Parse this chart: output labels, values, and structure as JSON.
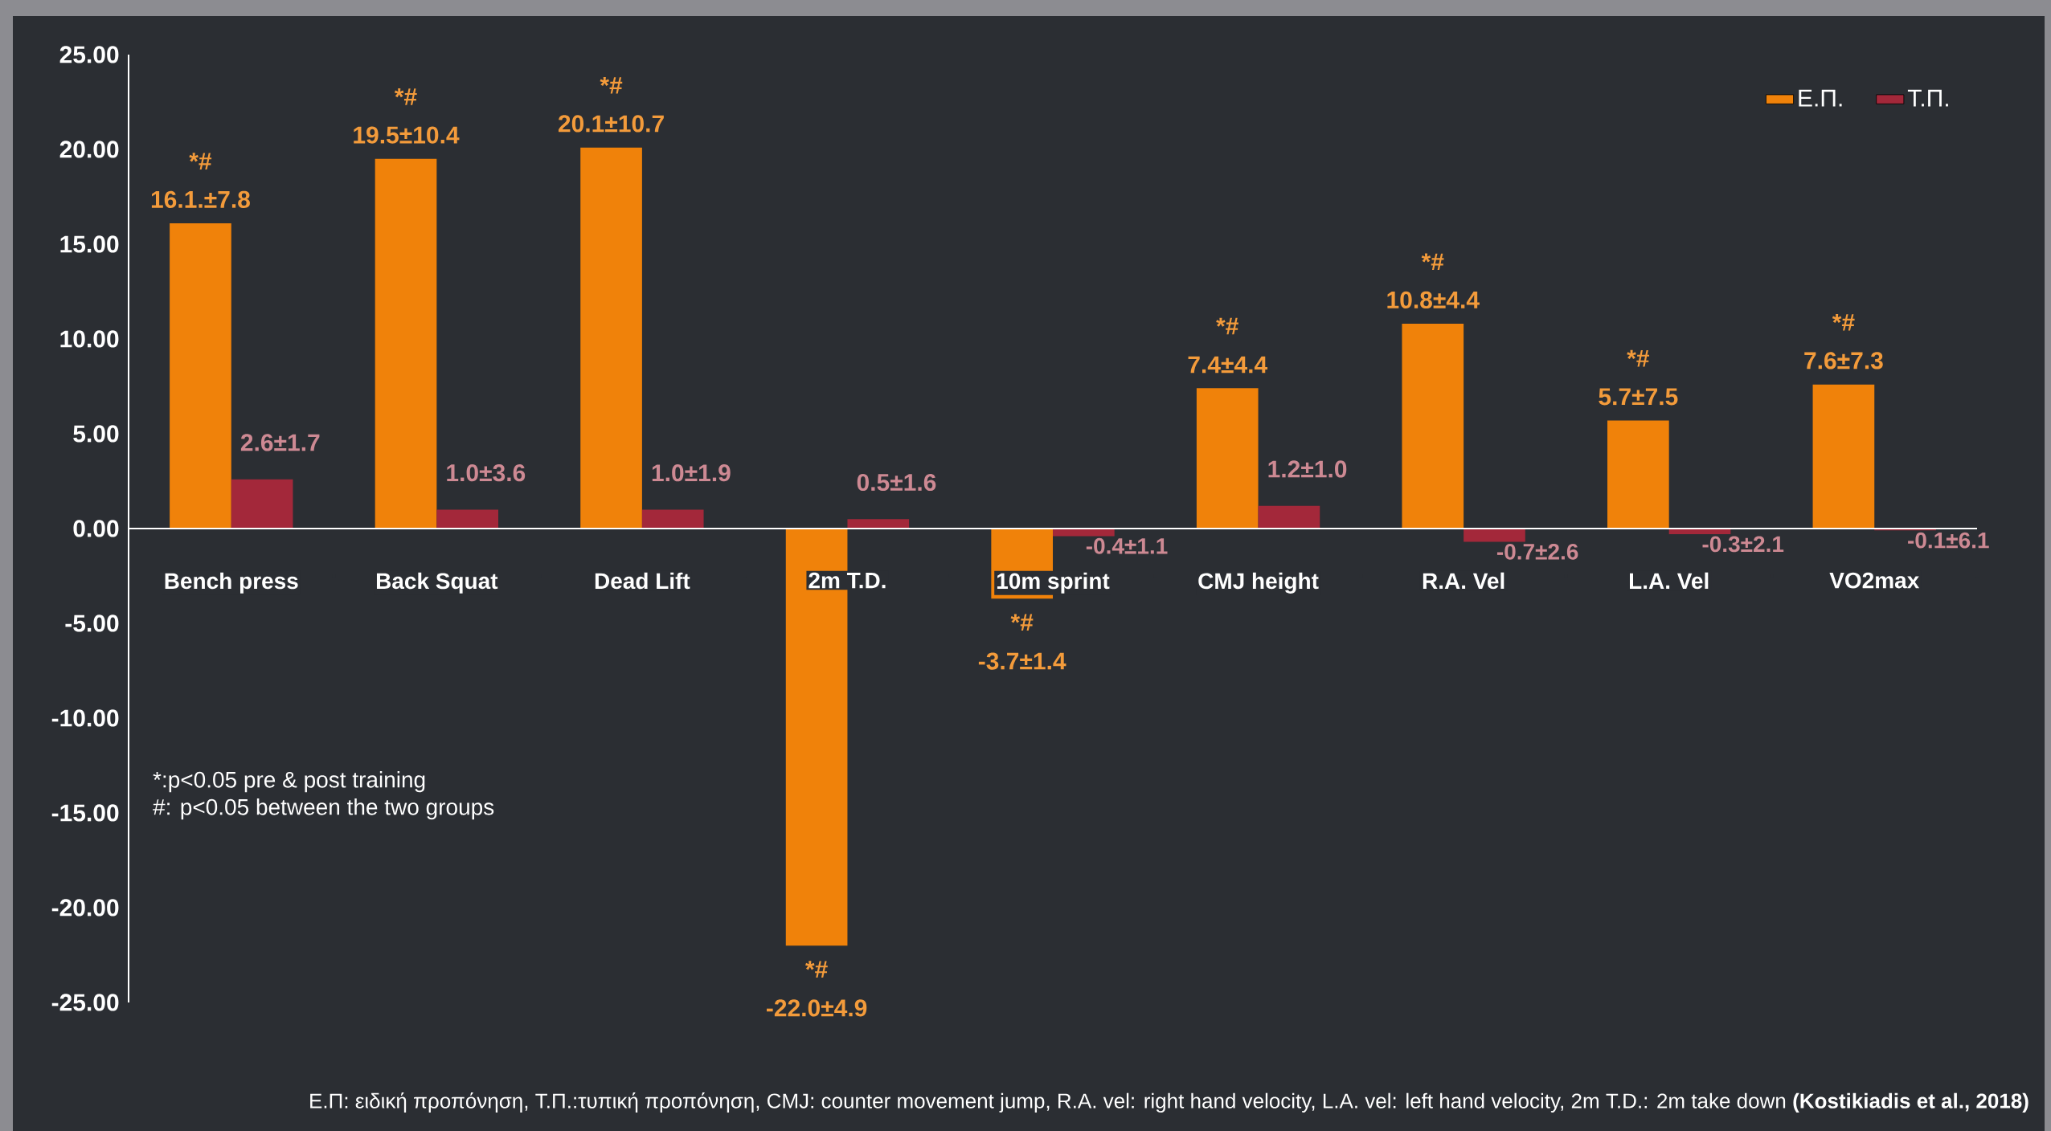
{
  "chart_data": {
    "type": "bar",
    "categories": [
      "Bench press",
      "Back Squat",
      "Dead Lift",
      "2m T.D.",
      "10m sprint",
      "CMJ height",
      "R.A. Vel",
      "L.A. Vel",
      "VO2max"
    ],
    "series": [
      {
        "name": "Ε.Π.",
        "color": "#f0820a",
        "values": [
          16.1,
          19.5,
          20.1,
          -22.0,
          -3.7,
          7.4,
          10.8,
          5.7,
          7.6
        ],
        "value_labels": [
          "16.1.±7.8",
          "19.5±10.4",
          "20.1±10.7",
          "-22.0±4.9",
          "-3.7±1.4",
          "7.4±4.4",
          "10.8±4.4",
          "5.7±7.5",
          "7.6±7.3"
        ]
      },
      {
        "name": "Τ.Π.",
        "color": "#a3283a",
        "values": [
          2.6,
          1.0,
          1.0,
          0.5,
          -0.4,
          1.2,
          -0.7,
          -0.3,
          -0.1
        ],
        "value_labels": [
          "2.6±1.7",
          "1.0±3.6",
          "1.0±1.9",
          "0.5±1.6",
          "-0.4±1.1",
          "1.2±1.0",
          "-0.7±2.6",
          "-0.3±2.1",
          "-0.1±6.1"
        ]
      }
    ],
    "ylim": [
      -25,
      25
    ],
    "yticks": [
      {
        "value": -25,
        "label": "-25.00"
      },
      {
        "value": -20,
        "label": "-20.00"
      },
      {
        "value": -15,
        "label": "-15.00"
      },
      {
        "value": -10,
        "label": "-10.00"
      },
      {
        "value": -5,
        "label": "-5.00"
      },
      {
        "value": 0,
        "label": "0.00"
      },
      {
        "value": 5,
        "label": "5.00"
      },
      {
        "value": 10,
        "label": "10.00"
      },
      {
        "value": 15,
        "label": "15.00"
      },
      {
        "value": 20,
        "label": "20.00"
      },
      {
        "value": 25,
        "label": "25.00"
      }
    ],
    "legend": "top right",
    "annotations": [
      {
        "text": "*#",
        "x": "Bench press",
        "y": 16.1
      },
      {
        "text": "*#",
        "x": "Back Squat",
        "y": 19.5
      },
      {
        "text": "*#",
        "x": "Dead Lift",
        "y": 20.1
      },
      {
        "text": "*#",
        "x": "2m T.D.",
        "y": -22.0
      },
      {
        "text": "*#",
        "x": "10m sprint",
        "y": -3.7
      },
      {
        "text": "*#",
        "x": "CMJ height",
        "y": 7.4
      },
      {
        "text": "*#",
        "x": "R.A. Vel",
        "y": 10.8
      },
      {
        "text": "*#",
        "x": "L.A. Vel",
        "y": 5.7
      },
      {
        "text": "*#",
        "x": "VO2max",
        "y": 7.6
      },
      "*:p<0.05 pre & post training",
      "#: p<0.05 between the two groups",
      "Ε.Π: ειδική προπόνηση, Τ.Π.:τυπική προπόνηση, CMJ: counter movement jump, R.A. vel: right hand velocity, L.A. vel: left hand velocity, 2m T.D.: 2m take down **(Kostikiadis et al., 2018)**"
    ]
  }
}
